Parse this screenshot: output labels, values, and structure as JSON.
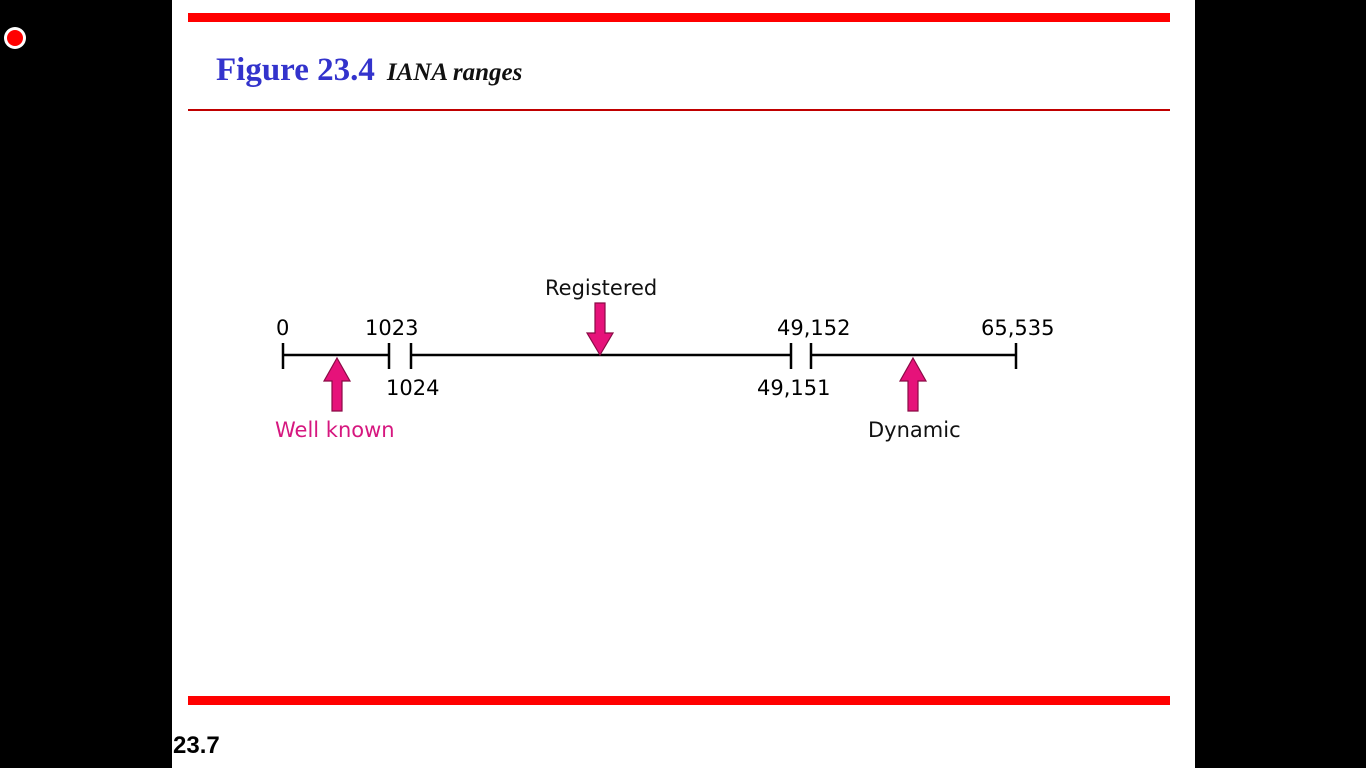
{
  "title": {
    "figure": "Figure 23.4",
    "caption": "IANA ranges"
  },
  "slide_number": "23.7",
  "colors": {
    "accent_red": "#ff0000",
    "title_blue": "#3333cc",
    "arrow_magenta": "#e6127a",
    "well_known_label": "#d6177f"
  },
  "diagram": {
    "numbers": {
      "start": "0",
      "well_known_end": "1023",
      "registered_start": "1024",
      "registered_end": "49,151",
      "dynamic_start": "49,152",
      "end": "65,535"
    },
    "labels": {
      "well_known": "Well known",
      "registered": "Registered",
      "dynamic": "Dynamic"
    }
  }
}
